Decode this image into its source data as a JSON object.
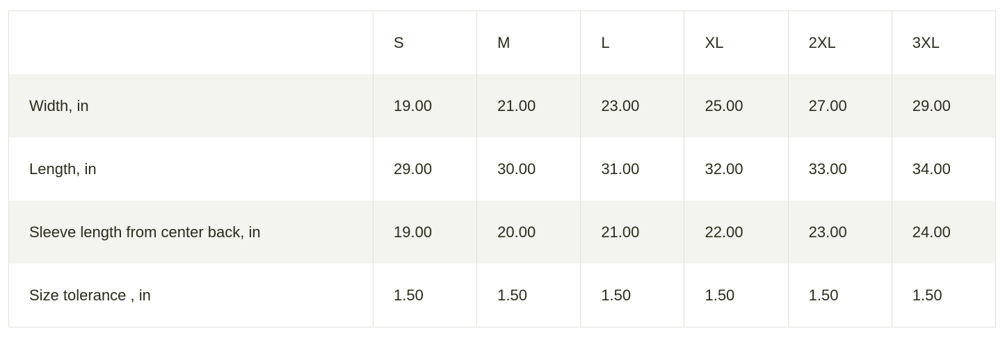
{
  "headers": [
    "",
    "S",
    "M",
    "L",
    "XL",
    "2XL",
    "3XL"
  ],
  "rows": [
    {
      "label": "Width, in",
      "values": [
        "19.00",
        "21.00",
        "23.00",
        "25.00",
        "27.00",
        "29.00"
      ]
    },
    {
      "label": "Length, in",
      "values": [
        "29.00",
        "30.00",
        "31.00",
        "32.00",
        "33.00",
        "34.00"
      ]
    },
    {
      "label": "Sleeve length from center back, in",
      "values": [
        "19.00",
        "20.00",
        "21.00",
        "22.00",
        "23.00",
        "24.00"
      ]
    },
    {
      "label": "Size tolerance , in",
      "values": [
        "1.50",
        "1.50",
        "1.50",
        "1.50",
        "1.50",
        "1.50"
      ]
    }
  ],
  "colors": {
    "text": "#2b2b1c",
    "stripe": "#f3f3ef",
    "border": "#e2e2dc"
  }
}
